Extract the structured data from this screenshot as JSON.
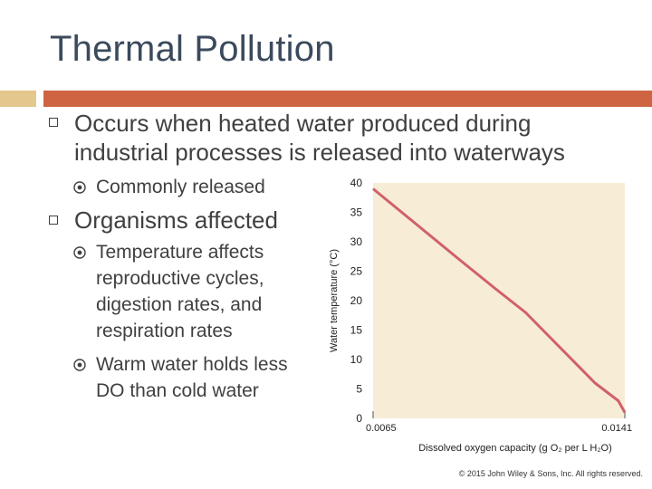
{
  "slide": {
    "title": "Thermal Pollution",
    "accent_colors": {
      "left_bar": "#e3c78c",
      "right_bar": "#cf6442",
      "curve": "#d0606a",
      "plot_bg": "#f7ecd6"
    },
    "bullets": [
      {
        "text_line1": "Occurs when heated water produced during",
        "text_line2": "industrial processes is released into waterways",
        "sub": [
          {
            "text": "Commonly released"
          }
        ]
      },
      {
        "text_line1": "Organisms affected",
        "sub": [
          {
            "lines": [
              "Temperature affects",
              "reproductive cycles,",
              "digestion rates, and",
              "respiration rates"
            ]
          },
          {
            "lines": [
              "Warm water holds less",
              "DO than cold water"
            ]
          }
        ]
      }
    ],
    "copyright": "© 2015 John Wiley & Sons, Inc. All rights reserved."
  },
  "chart_data": {
    "type": "line",
    "xlabel": "Dissolved oxygen capacity (g O₂ per L H₂O)",
    "ylabel": "Water temperature (°C)",
    "ylim": [
      0,
      40
    ],
    "yticks": [
      "0",
      "5",
      "10",
      "15",
      "20",
      "25",
      "30",
      "35",
      "40"
    ],
    "xticks": [
      "0.0065",
      "0.0141"
    ],
    "xlim": [
      0.0065,
      0.0141
    ],
    "series": [
      {
        "x": [
          0.0065,
          0.0078,
          0.0091,
          0.0102,
          0.0111,
          0.0118,
          0.0125,
          0.0132,
          0.0139,
          0.0141
        ],
        "values": [
          39,
          33,
          27,
          22,
          18,
          14,
          10,
          6,
          3,
          1
        ]
      }
    ]
  }
}
